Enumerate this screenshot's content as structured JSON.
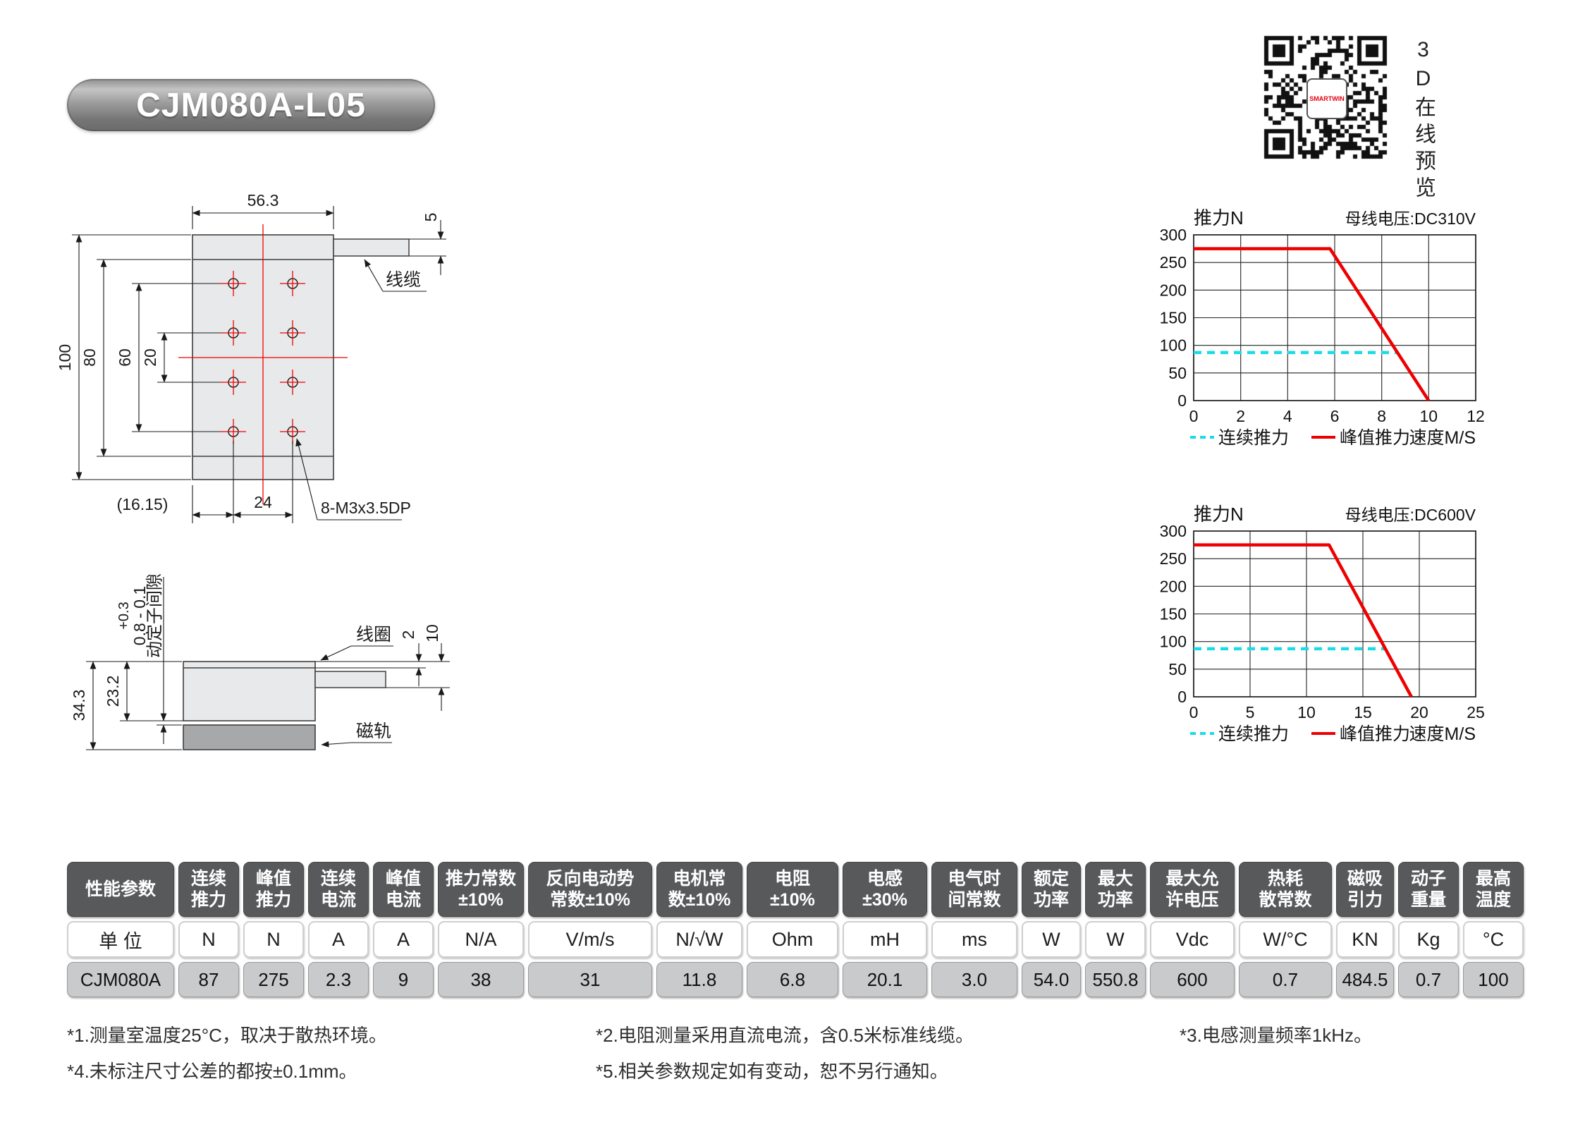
{
  "title": "CJM080A-L05",
  "qr": {
    "caption": "3D在线预览",
    "center_logo": "SMARTWIN",
    "logo_color": "#e60012"
  },
  "drawings": {
    "top_view": {
      "dim_width": "56.3",
      "dim_cable_thickness": "5",
      "dim_height": "100",
      "dim_80": "80",
      "dim_60": "60",
      "dim_20": "20",
      "dim_offset": "(16.15)",
      "dim_24": "24",
      "thread_note": "8-M3x3.5DP",
      "cable_label": "线缆"
    },
    "side_view": {
      "gap_tol": "+0.3",
      "gap_value": "0.8 - 0.1",
      "gap_label": "动定子间隙",
      "dim_total_height": "34.3",
      "dim_coil_height": "23.2",
      "dim_top_plate": "2",
      "dim_cable": "10",
      "coil_label": "线圈",
      "rail_label": "磁轨"
    }
  },
  "chart_data": [
    {
      "type": "line",
      "title_left": "推力N",
      "title_right": "母线电压:DC310V",
      "xlabel": "速度M/S",
      "xlim": [
        0,
        12
      ],
      "xticks": [
        0,
        2,
        4,
        6,
        8,
        10,
        12
      ],
      "ylim": [
        0,
        300
      ],
      "yticks": [
        0,
        50,
        100,
        150,
        200,
        250,
        300
      ],
      "grid": true,
      "legend_position": "bottom",
      "series": [
        {
          "name": "连续推力",
          "color": "#19dce8",
          "style": "dashed",
          "points": [
            [
              0,
              87
            ],
            [
              8.7,
              87
            ]
          ]
        },
        {
          "name": "峰值推力",
          "color": "#ee0000",
          "style": "solid",
          "points": [
            [
              0,
              275
            ],
            [
              5.8,
              275
            ],
            [
              10,
              0
            ]
          ]
        }
      ]
    },
    {
      "type": "line",
      "title_left": "推力N",
      "title_right": "母线电压:DC600V",
      "xlabel": "速度M/S",
      "xlim": [
        0,
        25
      ],
      "xticks": [
        0,
        5,
        10,
        15,
        20,
        25
      ],
      "ylim": [
        0,
        300
      ],
      "yticks": [
        0,
        50,
        100,
        150,
        200,
        250,
        300
      ],
      "grid": true,
      "legend_position": "bottom",
      "series": [
        {
          "name": "连续推力",
          "color": "#19dce8",
          "style": "dashed",
          "points": [
            [
              0,
              87
            ],
            [
              17,
              87
            ]
          ]
        },
        {
          "name": "峰值推力",
          "color": "#ee0000",
          "style": "solid",
          "points": [
            [
              0,
              275
            ],
            [
              12,
              275
            ],
            [
              19.3,
              0
            ]
          ]
        }
      ]
    }
  ],
  "table": {
    "columns": [
      {
        "header": "性能参数",
        "unit": "单 位",
        "value": "CJM080A"
      },
      {
        "header": "连续\n推力",
        "unit": "N",
        "value": "87"
      },
      {
        "header": "峰值\n推力",
        "unit": "N",
        "value": "275"
      },
      {
        "header": "连续\n电流",
        "unit": "A",
        "value": "2.3"
      },
      {
        "header": "峰值\n电流",
        "unit": "A",
        "value": "9"
      },
      {
        "header": "推力常数\n±10%",
        "unit": "N/A",
        "value": "38"
      },
      {
        "header": "反向电动势\n常数±10%",
        "unit": "V/m/s",
        "value": "31"
      },
      {
        "header": "电机常\n数±10%",
        "unit": "N/√W",
        "value": "11.8"
      },
      {
        "header": "电阻\n±10%",
        "unit": "Ohm",
        "value": "6.8"
      },
      {
        "header": "电感\n±30%",
        "unit": "mH",
        "value": "20.1"
      },
      {
        "header": "电气时\n间常数",
        "unit": "ms",
        "value": "3.0"
      },
      {
        "header": "额定\n功率",
        "unit": "W",
        "value": "54.0"
      },
      {
        "header": "最大\n功率",
        "unit": "W",
        "value": "550.8"
      },
      {
        "header": "最大允\n许电压",
        "unit": "Vdc",
        "value": "600"
      },
      {
        "header": "热耗\n散常数",
        "unit": "W/°C",
        "value": "0.7"
      },
      {
        "header": "磁吸\n引力",
        "unit": "KN",
        "value": "484.5"
      },
      {
        "header": "动子\n重量",
        "unit": "Kg",
        "value": "0.7"
      },
      {
        "header": "最高\n温度",
        "unit": "°C",
        "value": "100"
      }
    ]
  },
  "footnotes": {
    "col1": [
      "*1.测量室温度25°C，取决于散热环境。",
      "*4.未标注尺寸公差的都按±0.1mm。"
    ],
    "col2": [
      "*2.电阻测量采用直流电流，含0.5米标准线缆。",
      "*5.相关参数规定如有变动，恕不另行通知。"
    ],
    "col3": [
      "*3.电感测量频率1kHz。"
    ]
  }
}
